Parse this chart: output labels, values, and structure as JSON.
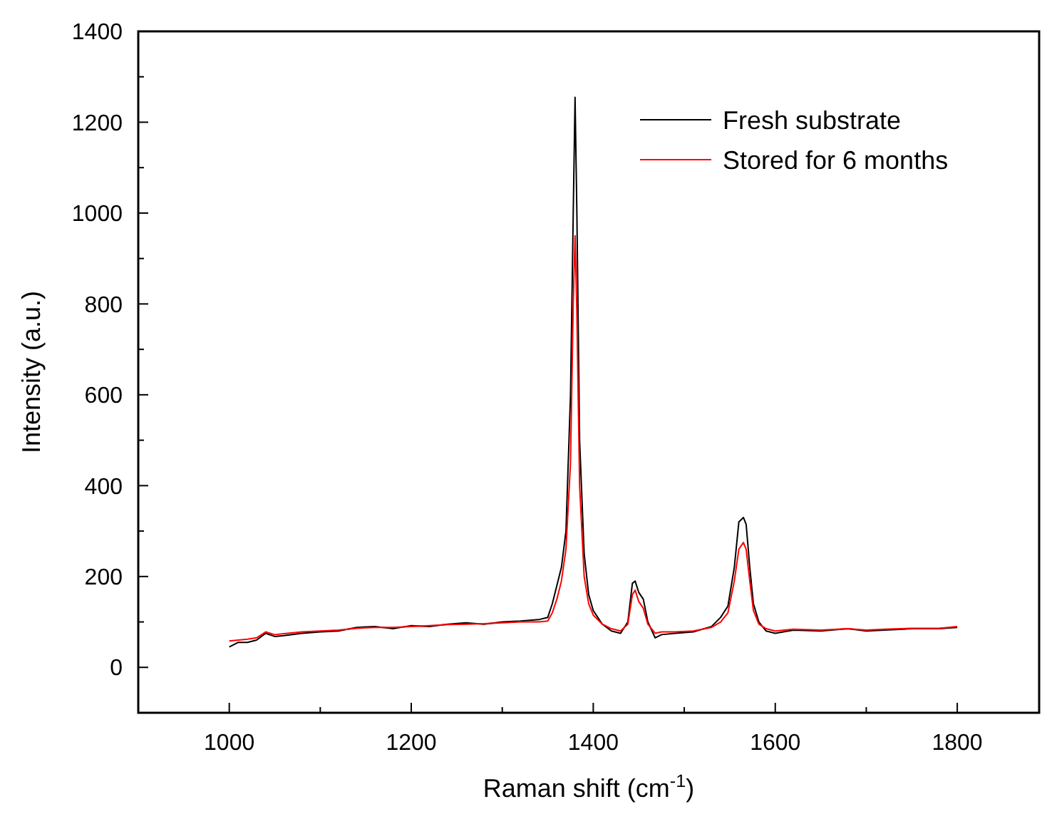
{
  "chart_data": {
    "type": "line",
    "xlabel": "Raman shift (cm$^{-1}$)",
    "ylabel": "Intensity (a.u.)",
    "xlim": [
      900,
      1890
    ],
    "ylim": [
      -100,
      1400
    ],
    "xticks": [
      {
        "value": 900,
        "label": null
      },
      1000,
      {
        "value": 1100,
        "label": null
      },
      1200,
      {
        "value": 1300,
        "label": null
      },
      1400,
      {
        "value": 1500,
        "label": null
      },
      1600,
      {
        "value": 1700,
        "label": null
      },
      1800
    ],
    "yticks": [
      {
        "value": -100,
        "label": null
      },
      0,
      {
        "value": 100,
        "label": null
      },
      200,
      {
        "value": 300,
        "label": null
      },
      400,
      {
        "value": 500,
        "label": null
      },
      600,
      {
        "value": 700,
        "label": null
      },
      800,
      {
        "value": 900,
        "label": null
      },
      1000,
      {
        "value": 1100,
        "label": null
      },
      1200,
      {
        "value": 1300,
        "label": null
      },
      1400
    ],
    "legend": "top right",
    "grid": false,
    "line_style": "solid",
    "series": [
      {
        "name": "Fresh substrate",
        "color": "#000000",
        "x": [
          1000,
          1010,
          1020,
          1030,
          1040,
          1050,
          1060,
          1080,
          1100,
          1120,
          1140,
          1160,
          1180,
          1200,
          1220,
          1240,
          1260,
          1280,
          1300,
          1320,
          1340,
          1350,
          1355,
          1360,
          1365,
          1370,
          1375,
          1378,
          1380,
          1382,
          1385,
          1390,
          1395,
          1400,
          1410,
          1420,
          1430,
          1438,
          1443,
          1446,
          1450,
          1455,
          1460,
          1468,
          1475,
          1490,
          1510,
          1530,
          1540,
          1548,
          1555,
          1560,
          1565,
          1568,
          1572,
          1576,
          1582,
          1590,
          1600,
          1620,
          1650,
          1680,
          1700,
          1720,
          1750,
          1780,
          1800
        ],
        "values": [
          45,
          55,
          55,
          60,
          75,
          68,
          70,
          75,
          78,
          80,
          88,
          90,
          85,
          92,
          90,
          95,
          98,
          95,
          100,
          102,
          105,
          110,
          140,
          180,
          220,
          300,
          600,
          1000,
          1255,
          1000,
          500,
          250,
          160,
          125,
          95,
          80,
          75,
          100,
          185,
          190,
          165,
          150,
          100,
          65,
          72,
          75,
          78,
          90,
          110,
          135,
          220,
          320,
          330,
          315,
          220,
          140,
          100,
          80,
          75,
          82,
          80,
          85,
          80,
          82,
          85,
          85,
          88
        ]
      },
      {
        "name": "Stored for 6 months",
        "color": "#ff0000",
        "x": [
          1000,
          1010,
          1020,
          1030,
          1040,
          1050,
          1060,
          1080,
          1100,
          1120,
          1140,
          1160,
          1180,
          1200,
          1220,
          1240,
          1260,
          1280,
          1300,
          1320,
          1340,
          1350,
          1355,
          1360,
          1365,
          1370,
          1375,
          1378,
          1380,
          1382,
          1385,
          1390,
          1395,
          1400,
          1410,
          1420,
          1430,
          1438,
          1443,
          1446,
          1450,
          1455,
          1460,
          1468,
          1475,
          1490,
          1510,
          1530,
          1540,
          1548,
          1555,
          1560,
          1565,
          1568,
          1572,
          1576,
          1582,
          1590,
          1600,
          1620,
          1650,
          1680,
          1700,
          1720,
          1750,
          1780,
          1800
        ],
        "values": [
          58,
          60,
          62,
          65,
          78,
          72,
          74,
          78,
          80,
          82,
          86,
          88,
          88,
          90,
          92,
          94,
          95,
          96,
          98,
          100,
          100,
          102,
          120,
          150,
          190,
          260,
          450,
          800,
          950,
          780,
          400,
          200,
          140,
          115,
          95,
          85,
          80,
          95,
          160,
          170,
          145,
          130,
          95,
          75,
          78,
          78,
          80,
          88,
          100,
          120,
          190,
          260,
          275,
          260,
          190,
          125,
          95,
          85,
          80,
          84,
          82,
          85,
          82,
          84,
          86,
          86,
          90
        ]
      }
    ]
  }
}
